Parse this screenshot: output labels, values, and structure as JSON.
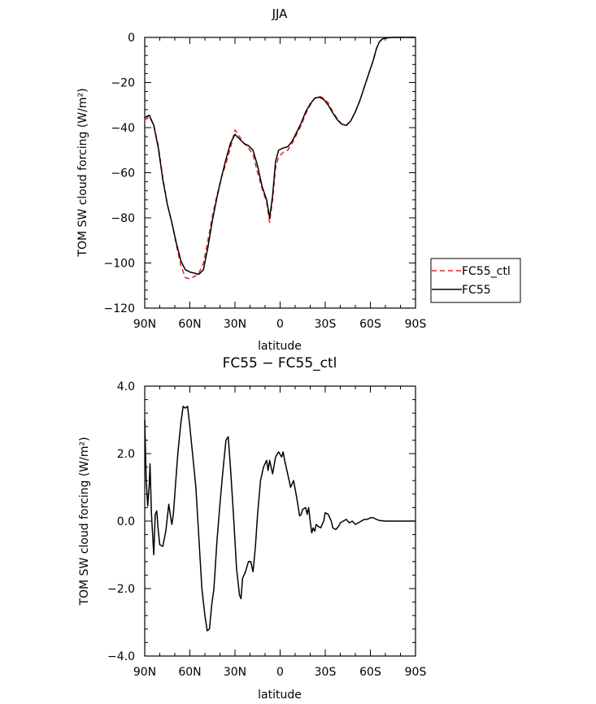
{
  "chart_data": [
    {
      "type": "line",
      "title": "JJA",
      "xlabel": "latitude",
      "ylabel": "TOM SW cloud forcing (W/m²)",
      "xlim": [
        90,
        -90
      ],
      "ylim": [
        -120,
        0
      ],
      "x_ticks": [
        90,
        60,
        30,
        0,
        -30,
        -60,
        -90
      ],
      "x_tick_labels": [
        "90N",
        "60N",
        "30N",
        "0",
        "30S",
        "60S",
        "90S"
      ],
      "y_ticks": [
        0,
        -20,
        -40,
        -60,
        -80,
        -100,
        -120
      ],
      "y_tick_labels": [
        "0",
        "−20",
        "−40",
        "−60",
        "−80",
        "−100",
        "−120"
      ],
      "legend": "right",
      "series": [
        {
          "name": "FC55_ctl",
          "color": "#e8231d",
          "dash": "dashed",
          "points": [
            [
              90,
              -36.5
            ],
            [
              87,
              -35
            ],
            [
              84,
              -39
            ],
            [
              81,
              -48
            ],
            [
              78,
              -62
            ],
            [
              75,
              -74
            ],
            [
              72,
              -82
            ],
            [
              69,
              -92
            ],
            [
              66,
              -101
            ],
            [
              63,
              -106.5
            ],
            [
              60,
              -107
            ],
            [
              57,
              -106
            ],
            [
              54,
              -104.5
            ],
            [
              51,
              -100
            ],
            [
              48,
              -90
            ],
            [
              45,
              -79
            ],
            [
              42,
              -70
            ],
            [
              39,
              -62
            ],
            [
              36,
              -56
            ],
            [
              33,
              -49
            ],
            [
              30,
              -41
            ],
            [
              27,
              -44
            ],
            [
              24,
              -47
            ],
            [
              21,
              -49
            ],
            [
              18,
              -52
            ],
            [
              15,
              -60
            ],
            [
              12,
              -67
            ],
            [
              9,
              -73
            ],
            [
              7,
              -82
            ],
            [
              5,
              -72
            ],
            [
              3,
              -58
            ],
            [
              1,
              -53
            ],
            [
              -2,
              -51
            ],
            [
              -5,
              -50
            ],
            [
              -8,
              -47
            ],
            [
              -11,
              -43
            ],
            [
              -14,
              -39
            ],
            [
              -17,
              -34
            ],
            [
              -20,
              -30
            ],
            [
              -23,
              -27
            ],
            [
              -26,
              -26
            ],
            [
              -29,
              -27
            ],
            [
              -32,
              -29
            ],
            [
              -35,
              -33
            ],
            [
              -38,
              -36
            ],
            [
              -41,
              -38.5
            ],
            [
              -44,
              -39
            ],
            [
              -47,
              -37
            ],
            [
              -50,
              -33
            ],
            [
              -53,
              -28
            ],
            [
              -56,
              -22
            ],
            [
              -59,
              -16
            ],
            [
              -62,
              -10
            ],
            [
              -64,
              -5
            ],
            [
              -66,
              -2
            ],
            [
              -68,
              -0.7
            ],
            [
              -71,
              -0.2
            ],
            [
              -75,
              0
            ],
            [
              -80,
              0
            ],
            [
              -85,
              0
            ],
            [
              -90,
              0
            ]
          ]
        },
        {
          "name": "FC55",
          "color": "#000000",
          "dash": "solid",
          "points": [
            [
              90,
              -35.5
            ],
            [
              87,
              -34.5
            ],
            [
              84,
              -39
            ],
            [
              81,
              -49
            ],
            [
              78,
              -63
            ],
            [
              75,
              -74
            ],
            [
              72,
              -82
            ],
            [
              69,
              -91
            ],
            [
              66,
              -99
            ],
            [
              63,
              -103
            ],
            [
              60,
              -104
            ],
            [
              57,
              -104.5
            ],
            [
              54,
              -105
            ],
            [
              51,
              -103
            ],
            [
              48,
              -93
            ],
            [
              45,
              -81
            ],
            [
              42,
              -71
            ],
            [
              39,
              -62
            ],
            [
              36,
              -54
            ],
            [
              33,
              -47
            ],
            [
              30,
              -43
            ],
            [
              27,
              -45
            ],
            [
              24,
              -47
            ],
            [
              21,
              -48
            ],
            [
              18,
              -50
            ],
            [
              15,
              -57
            ],
            [
              12,
              -66
            ],
            [
              9,
              -72
            ],
            [
              7,
              -80
            ],
            [
              5,
              -70
            ],
            [
              3,
              -55
            ],
            [
              1,
              -50
            ],
            [
              -2,
              -49
            ],
            [
              -5,
              -48.5
            ],
            [
              -8,
              -46
            ],
            [
              -11,
              -42
            ],
            [
              -14,
              -38
            ],
            [
              -17,
              -33
            ],
            [
              -20,
              -29.5
            ],
            [
              -23,
              -27
            ],
            [
              -26,
              -26.5
            ],
            [
              -29,
              -27.5
            ],
            [
              -32,
              -30
            ],
            [
              -35,
              -33.5
            ],
            [
              -38,
              -36.5
            ],
            [
              -41,
              -38.5
            ],
            [
              -44,
              -39
            ],
            [
              -47,
              -37
            ],
            [
              -50,
              -33
            ],
            [
              -53,
              -28
            ],
            [
              -56,
              -22
            ],
            [
              -59,
              -16
            ],
            [
              -62,
              -10
            ],
            [
              -64,
              -5
            ],
            [
              -66,
              -2
            ],
            [
              -68,
              -0.7
            ],
            [
              -71,
              -0.2
            ],
            [
              -75,
              0
            ],
            [
              -80,
              0
            ],
            [
              -85,
              0
            ],
            [
              -90,
              0
            ]
          ]
        }
      ]
    },
    {
      "type": "line",
      "title": "FC55 − FC55_ctl",
      "xlabel": "latitude",
      "ylabel": "TOM SW cloud forcing (W/m²)",
      "xlim": [
        90,
        -90
      ],
      "ylim": [
        -4.0,
        4.0
      ],
      "x_ticks": [
        90,
        60,
        30,
        0,
        -30,
        -60,
        -90
      ],
      "x_tick_labels": [
        "90N",
        "60N",
        "30N",
        "0",
        "30S",
        "60S",
        "90S"
      ],
      "y_ticks": [
        4.0,
        2.0,
        0.0,
        -2.0,
        -4.0
      ],
      "y_tick_labels": [
        "4.0",
        "2.0",
        "0.0",
        "−2.0",
        "−4.0"
      ],
      "series": [
        {
          "color": "#000000",
          "dash": "solid",
          "points": [
            [
              90,
              3.0
            ],
            [
              89,
              1.2
            ],
            [
              88,
              0.45
            ],
            [
              87,
              1.1
            ],
            [
              86.5,
              1.7
            ],
            [
              85.5,
              0.2
            ],
            [
              84,
              -1.0
            ],
            [
              83,
              0.2
            ],
            [
              82,
              0.3
            ],
            [
              81,
              -0.3
            ],
            [
              80,
              -0.7
            ],
            [
              78,
              -0.75
            ],
            [
              76,
              -0.3
            ],
            [
              74,
              0.5
            ],
            [
              73,
              0.2
            ],
            [
              72,
              -0.1
            ],
            [
              71,
              0.2
            ],
            [
              70,
              0.8
            ],
            [
              68,
              2.0
            ],
            [
              66,
              2.9
            ],
            [
              64.5,
              3.4
            ],
            [
              63,
              3.35
            ],
            [
              61.5,
              3.4
            ],
            [
              60,
              2.8
            ],
            [
              58,
              1.9
            ],
            [
              56,
              1.0
            ],
            [
              54,
              -0.5
            ],
            [
              52,
              -2.0
            ],
            [
              50,
              -2.8
            ],
            [
              48.5,
              -3.25
            ],
            [
              47,
              -3.2
            ],
            [
              45.5,
              -2.5
            ],
            [
              44,
              -2.0
            ],
            [
              42,
              -0.6
            ],
            [
              40,
              0.5
            ],
            [
              38,
              1.5
            ],
            [
              36,
              2.4
            ],
            [
              34.5,
              2.5
            ],
            [
              33,
              1.6
            ],
            [
              31,
              0.2
            ],
            [
              29,
              -1.4
            ],
            [
              27,
              -2.2
            ],
            [
              26,
              -2.3
            ],
            [
              25,
              -1.7
            ],
            [
              23,
              -1.5
            ],
            [
              21,
              -1.2
            ],
            [
              19.5,
              -1.2
            ],
            [
              18,
              -1.5
            ],
            [
              16.5,
              -0.8
            ],
            [
              15,
              0.2
            ],
            [
              13,
              1.2
            ],
            [
              11,
              1.6
            ],
            [
              9,
              1.8
            ],
            [
              8,
              1.5
            ],
            [
              7,
              1.8
            ],
            [
              5,
              1.4
            ],
            [
              3,
              1.9
            ],
            [
              1,
              2.05
            ],
            [
              -1,
              1.9
            ],
            [
              -2,
              2.05
            ],
            [
              -3,
              1.8
            ],
            [
              -5,
              1.4
            ],
            [
              -7,
              1.0
            ],
            [
              -9,
              1.2
            ],
            [
              -11,
              0.7
            ],
            [
              -13,
              0.15
            ],
            [
              -14,
              0.2
            ],
            [
              -15,
              0.35
            ],
            [
              -17,
              0.4
            ],
            [
              -18,
              0.2
            ],
            [
              -19,
              0.4
            ],
            [
              -20,
              0.0
            ],
            [
              -21,
              -0.35
            ],
            [
              -22,
              -0.2
            ],
            [
              -23,
              -0.3
            ],
            [
              -24,
              -0.1
            ],
            [
              -25,
              -0.15
            ],
            [
              -27,
              -0.2
            ],
            [
              -29,
              0.0
            ],
            [
              -30,
              0.25
            ],
            [
              -32,
              0.2
            ],
            [
              -34,
              0.0
            ],
            [
              -35,
              -0.2
            ],
            [
              -37,
              -0.25
            ],
            [
              -39,
              -0.15
            ],
            [
              -40,
              -0.05
            ],
            [
              -42,
              0.0
            ],
            [
              -44,
              0.05
            ],
            [
              -46,
              -0.05
            ],
            [
              -48,
              0.0
            ],
            [
              -50,
              -0.1
            ],
            [
              -52,
              -0.05
            ],
            [
              -54,
              0.0
            ],
            [
              -56,
              0.05
            ],
            [
              -58,
              0.05
            ],
            [
              -60,
              0.1
            ],
            [
              -62,
              0.1
            ],
            [
              -64,
              0.05
            ],
            [
              -66,
              0.02
            ],
            [
              -70,
              0.0
            ],
            [
              -80,
              0.0
            ],
            [
              -90,
              0.0
            ]
          ]
        }
      ]
    }
  ]
}
